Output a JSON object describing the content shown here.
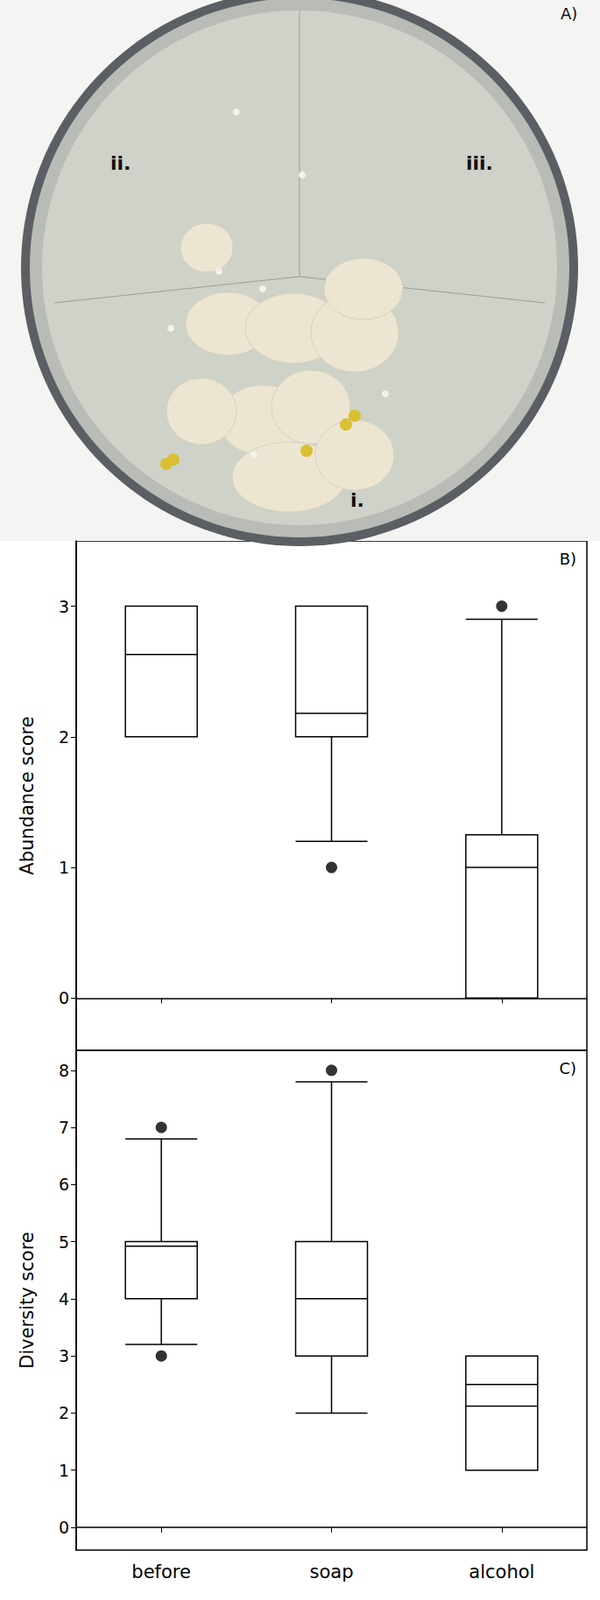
{
  "image": {
    "panel": "A)",
    "labels": [
      "ii.",
      "iii.",
      "i."
    ]
  },
  "chart_data": [
    {
      "type": "boxplot",
      "title": "B)",
      "y_label": "Abundance score",
      "categories": [
        "before",
        "soap",
        "alcohol"
      ],
      "tick_labels": "y",
      "boxes": [
        {
          "low": 2,
          "q1": 2,
          "median": 2.63,
          "q3": 3,
          "high": 3,
          "outliers": []
        },
        {
          "low": 1.2,
          "q1": 2,
          "median": 2.18,
          "q3": 3,
          "high": 3,
          "outliers": [
            1
          ]
        },
        {
          "low": 0,
          "q1": 0,
          "median": 1,
          "q3": 1.25,
          "high": 2.9,
          "outliers": [
            3
          ]
        }
      ],
      "ylim": [
        -0.4,
        3.5
      ],
      "yticks": [
        0,
        1,
        2,
        3
      ],
      "grid": false
    },
    {
      "type": "boxplot",
      "title": "C)",
      "y_label": "Diversity score",
      "categories": [
        "before",
        "soap",
        "alcohol"
      ],
      "boxes": [
        {
          "low": 3.2,
          "q1": 4,
          "median": 4.92,
          "q3": 5,
          "high": 6.8,
          "outliers": [
            7,
            3
          ]
        },
        {
          "low": 2,
          "q1": 3,
          "median": 4,
          "q3": 5,
          "high": 7.8,
          "outliers": [
            8
          ]
        },
        {
          "low": 1,
          "q1": 1,
          "median": 2.5,
          "q3": 3,
          "high": 3,
          "outliers": [],
          "mean": 2.12
        }
      ],
      "ylim": [
        -0.4,
        8.35
      ],
      "yticks": [
        0,
        1,
        2,
        3,
        4,
        5,
        6,
        7,
        8
      ],
      "grid": false
    }
  ]
}
